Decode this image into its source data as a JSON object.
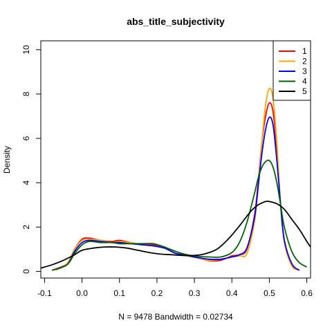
{
  "chart_data": {
    "type": "line",
    "title": "abs_title_subjectivity",
    "xlabel": "N = 9478   Bandwidth = 0.02734",
    "ylabel": "Density",
    "xlim": [
      -0.11,
      0.61
    ],
    "ylim": [
      -0.3,
      10.4
    ],
    "xticks": [
      -0.1,
      0.0,
      0.1,
      0.2,
      0.3,
      0.4,
      0.5,
      0.6
    ],
    "xtick_labels": [
      "-0.1",
      "0.0",
      "0.1",
      "0.2",
      "0.3",
      "0.4",
      "0.5",
      "0.6"
    ],
    "yticks": [
      0,
      2,
      4,
      6,
      8,
      10
    ],
    "ytick_labels": [
      "0",
      "2",
      "4",
      "6",
      "8",
      "10"
    ],
    "grid": false,
    "legend_position": "top-right",
    "series": [
      {
        "name": "1",
        "color": "#ff0000",
        "x": [
          -0.08,
          -0.04,
          -0.02,
          0.0,
          0.02,
          0.05,
          0.08,
          0.1,
          0.13,
          0.16,
          0.19,
          0.22,
          0.25,
          0.28,
          0.31,
          0.34,
          0.37,
          0.4,
          0.42,
          0.44,
          0.46,
          0.47,
          0.48,
          0.49,
          0.5,
          0.51,
          0.52,
          0.53,
          0.54,
          0.56,
          0.58
        ],
        "y": [
          0.05,
          0.35,
          1.0,
          1.45,
          1.5,
          1.4,
          1.35,
          1.4,
          1.3,
          1.2,
          1.2,
          1.05,
          0.8,
          0.7,
          0.6,
          0.48,
          0.5,
          0.7,
          0.75,
          1.0,
          2.5,
          4.0,
          5.8,
          7.0,
          7.6,
          7.2,
          5.5,
          3.0,
          1.4,
          0.3,
          0.05
        ]
      },
      {
        "name": "2",
        "color": "#ffa500",
        "x": [
          -0.07,
          -0.04,
          -0.02,
          0.0,
          0.02,
          0.05,
          0.08,
          0.1,
          0.13,
          0.16,
          0.19,
          0.22,
          0.25,
          0.28,
          0.31,
          0.34,
          0.37,
          0.4,
          0.42,
          0.44,
          0.46,
          0.47,
          0.48,
          0.49,
          0.5,
          0.51,
          0.52,
          0.53,
          0.54,
          0.56,
          0.58
        ],
        "y": [
          0.05,
          0.35,
          1.0,
          1.4,
          1.45,
          1.4,
          1.3,
          1.35,
          1.3,
          1.2,
          1.15,
          1.05,
          0.8,
          0.7,
          0.6,
          0.5,
          0.55,
          0.65,
          0.7,
          0.8,
          2.2,
          3.8,
          5.8,
          7.5,
          8.25,
          7.8,
          5.8,
          3.0,
          1.3,
          0.25,
          0.05
        ]
      },
      {
        "name": "3",
        "color": "#0000ff",
        "x": [
          -0.08,
          -0.04,
          -0.02,
          0.0,
          0.02,
          0.05,
          0.08,
          0.1,
          0.13,
          0.16,
          0.19,
          0.22,
          0.25,
          0.28,
          0.31,
          0.34,
          0.37,
          0.4,
          0.42,
          0.44,
          0.46,
          0.47,
          0.48,
          0.49,
          0.5,
          0.51,
          0.52,
          0.53,
          0.54,
          0.56,
          0.58
        ],
        "y": [
          0.05,
          0.3,
          0.9,
          1.3,
          1.4,
          1.35,
          1.3,
          1.3,
          1.25,
          1.2,
          1.15,
          1.05,
          0.82,
          0.72,
          0.62,
          0.55,
          0.55,
          0.65,
          0.75,
          1.05,
          2.4,
          3.8,
          5.3,
          6.4,
          6.95,
          6.6,
          5.0,
          3.0,
          1.4,
          0.35,
          0.05
        ]
      },
      {
        "name": "4",
        "color": "#006400",
        "x": [
          -0.08,
          -0.04,
          -0.02,
          0.0,
          0.02,
          0.05,
          0.08,
          0.1,
          0.13,
          0.16,
          0.19,
          0.22,
          0.25,
          0.28,
          0.31,
          0.34,
          0.37,
          0.4,
          0.42,
          0.44,
          0.46,
          0.47,
          0.48,
          0.49,
          0.5,
          0.51,
          0.52,
          0.53,
          0.54,
          0.56,
          0.58,
          0.6
        ],
        "y": [
          0.05,
          0.3,
          0.8,
          1.2,
          1.35,
          1.3,
          1.3,
          1.25,
          1.25,
          1.25,
          1.25,
          1.1,
          0.9,
          0.75,
          0.68,
          0.65,
          0.65,
          0.85,
          1.3,
          2.2,
          3.5,
          4.2,
          4.7,
          4.95,
          5.0,
          4.7,
          4.0,
          3.0,
          2.0,
          0.9,
          0.4,
          0.2
        ]
      },
      {
        "name": "5",
        "color": "#000000",
        "x": [
          -0.11,
          -0.08,
          -0.05,
          -0.02,
          0.0,
          0.03,
          0.06,
          0.09,
          0.12,
          0.15,
          0.18,
          0.21,
          0.24,
          0.27,
          0.3,
          0.33,
          0.36,
          0.39,
          0.42,
          0.45,
          0.47,
          0.49,
          0.5,
          0.52,
          0.54,
          0.56,
          0.58,
          0.6,
          0.61
        ],
        "y": [
          0.15,
          0.3,
          0.5,
          0.75,
          0.95,
          1.05,
          1.1,
          1.1,
          1.05,
          0.95,
          0.85,
          0.78,
          0.75,
          0.72,
          0.72,
          0.8,
          1.0,
          1.45,
          2.05,
          2.7,
          3.0,
          3.15,
          3.15,
          3.05,
          2.8,
          2.35,
          1.9,
          1.35,
          1.1
        ]
      }
    ]
  }
}
